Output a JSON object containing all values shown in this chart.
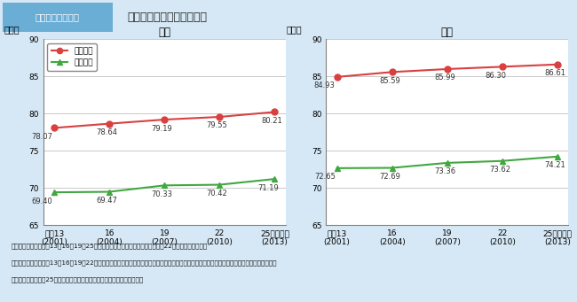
{
  "fig_label": "図１－２－３－３",
  "main_title": "健康寿命と平均寿命の推移",
  "male_title": "男性",
  "female_title": "女性",
  "x_positions": [
    0,
    1,
    2,
    3,
    4
  ],
  "x_tick_labels": [
    "平成13\n(2001)",
    "16\n(2004)",
    "19\n(2007)",
    "22\n(2010)",
    "25　（年）\n(2013)"
  ],
  "male_avg": [
    78.07,
    78.64,
    79.19,
    79.55,
    80.21
  ],
  "male_health": [
    69.4,
    69.47,
    70.33,
    70.42,
    71.19
  ],
  "female_avg": [
    84.93,
    85.59,
    85.99,
    86.3,
    86.61
  ],
  "female_health": [
    72.65,
    72.69,
    73.36,
    73.62,
    74.21
  ],
  "male_avg_labels": [
    "78.07",
    "78.64",
    "79.19",
    "79.55",
    "80.21"
  ],
  "male_health_labels": [
    "69.40",
    "69.47",
    "70.33",
    "70.42",
    "71.19"
  ],
  "female_avg_labels": [
    "84.93",
    "85.59",
    "85.99",
    "86.30",
    "86.61"
  ],
  "female_health_labels": [
    "72.65",
    "72.69",
    "73.36",
    "73.62",
    "74.21"
  ],
  "avg_color": "#d94040",
  "health_color": "#40a840",
  "ylim": [
    65,
    90
  ],
  "yticks": [
    65,
    70,
    75,
    80,
    85,
    90
  ],
  "legend_avg": "平均寿命",
  "legend_health": "健康寿命",
  "ylabel": "（年）",
  "footnote1": "資料：平均寿命：平成13・16・19・25年は、厚生労働省「簡易生命表」、平成22年は「完全生命表」",
  "footnote2": "　　　健康寿命：平成13・16・19・22年は、厚生労働科学研究費補助金「健康寿命における将来予測と生活習慣病対策の費用対効果に関する研",
  "footnote3": "　　　　　究」平成25年は厚生労働省が「国民生活基礎調査」を基に算出",
  "bg_color": "#d6e8f5",
  "plot_bg_color": "#ffffff",
  "header_bg_color": "#6aadd5",
  "header_text_color": "#ffffff",
  "title_area_bg": "#e8f2fa",
  "grid_color": "#c0c0c0",
  "spine_color": "#808080"
}
